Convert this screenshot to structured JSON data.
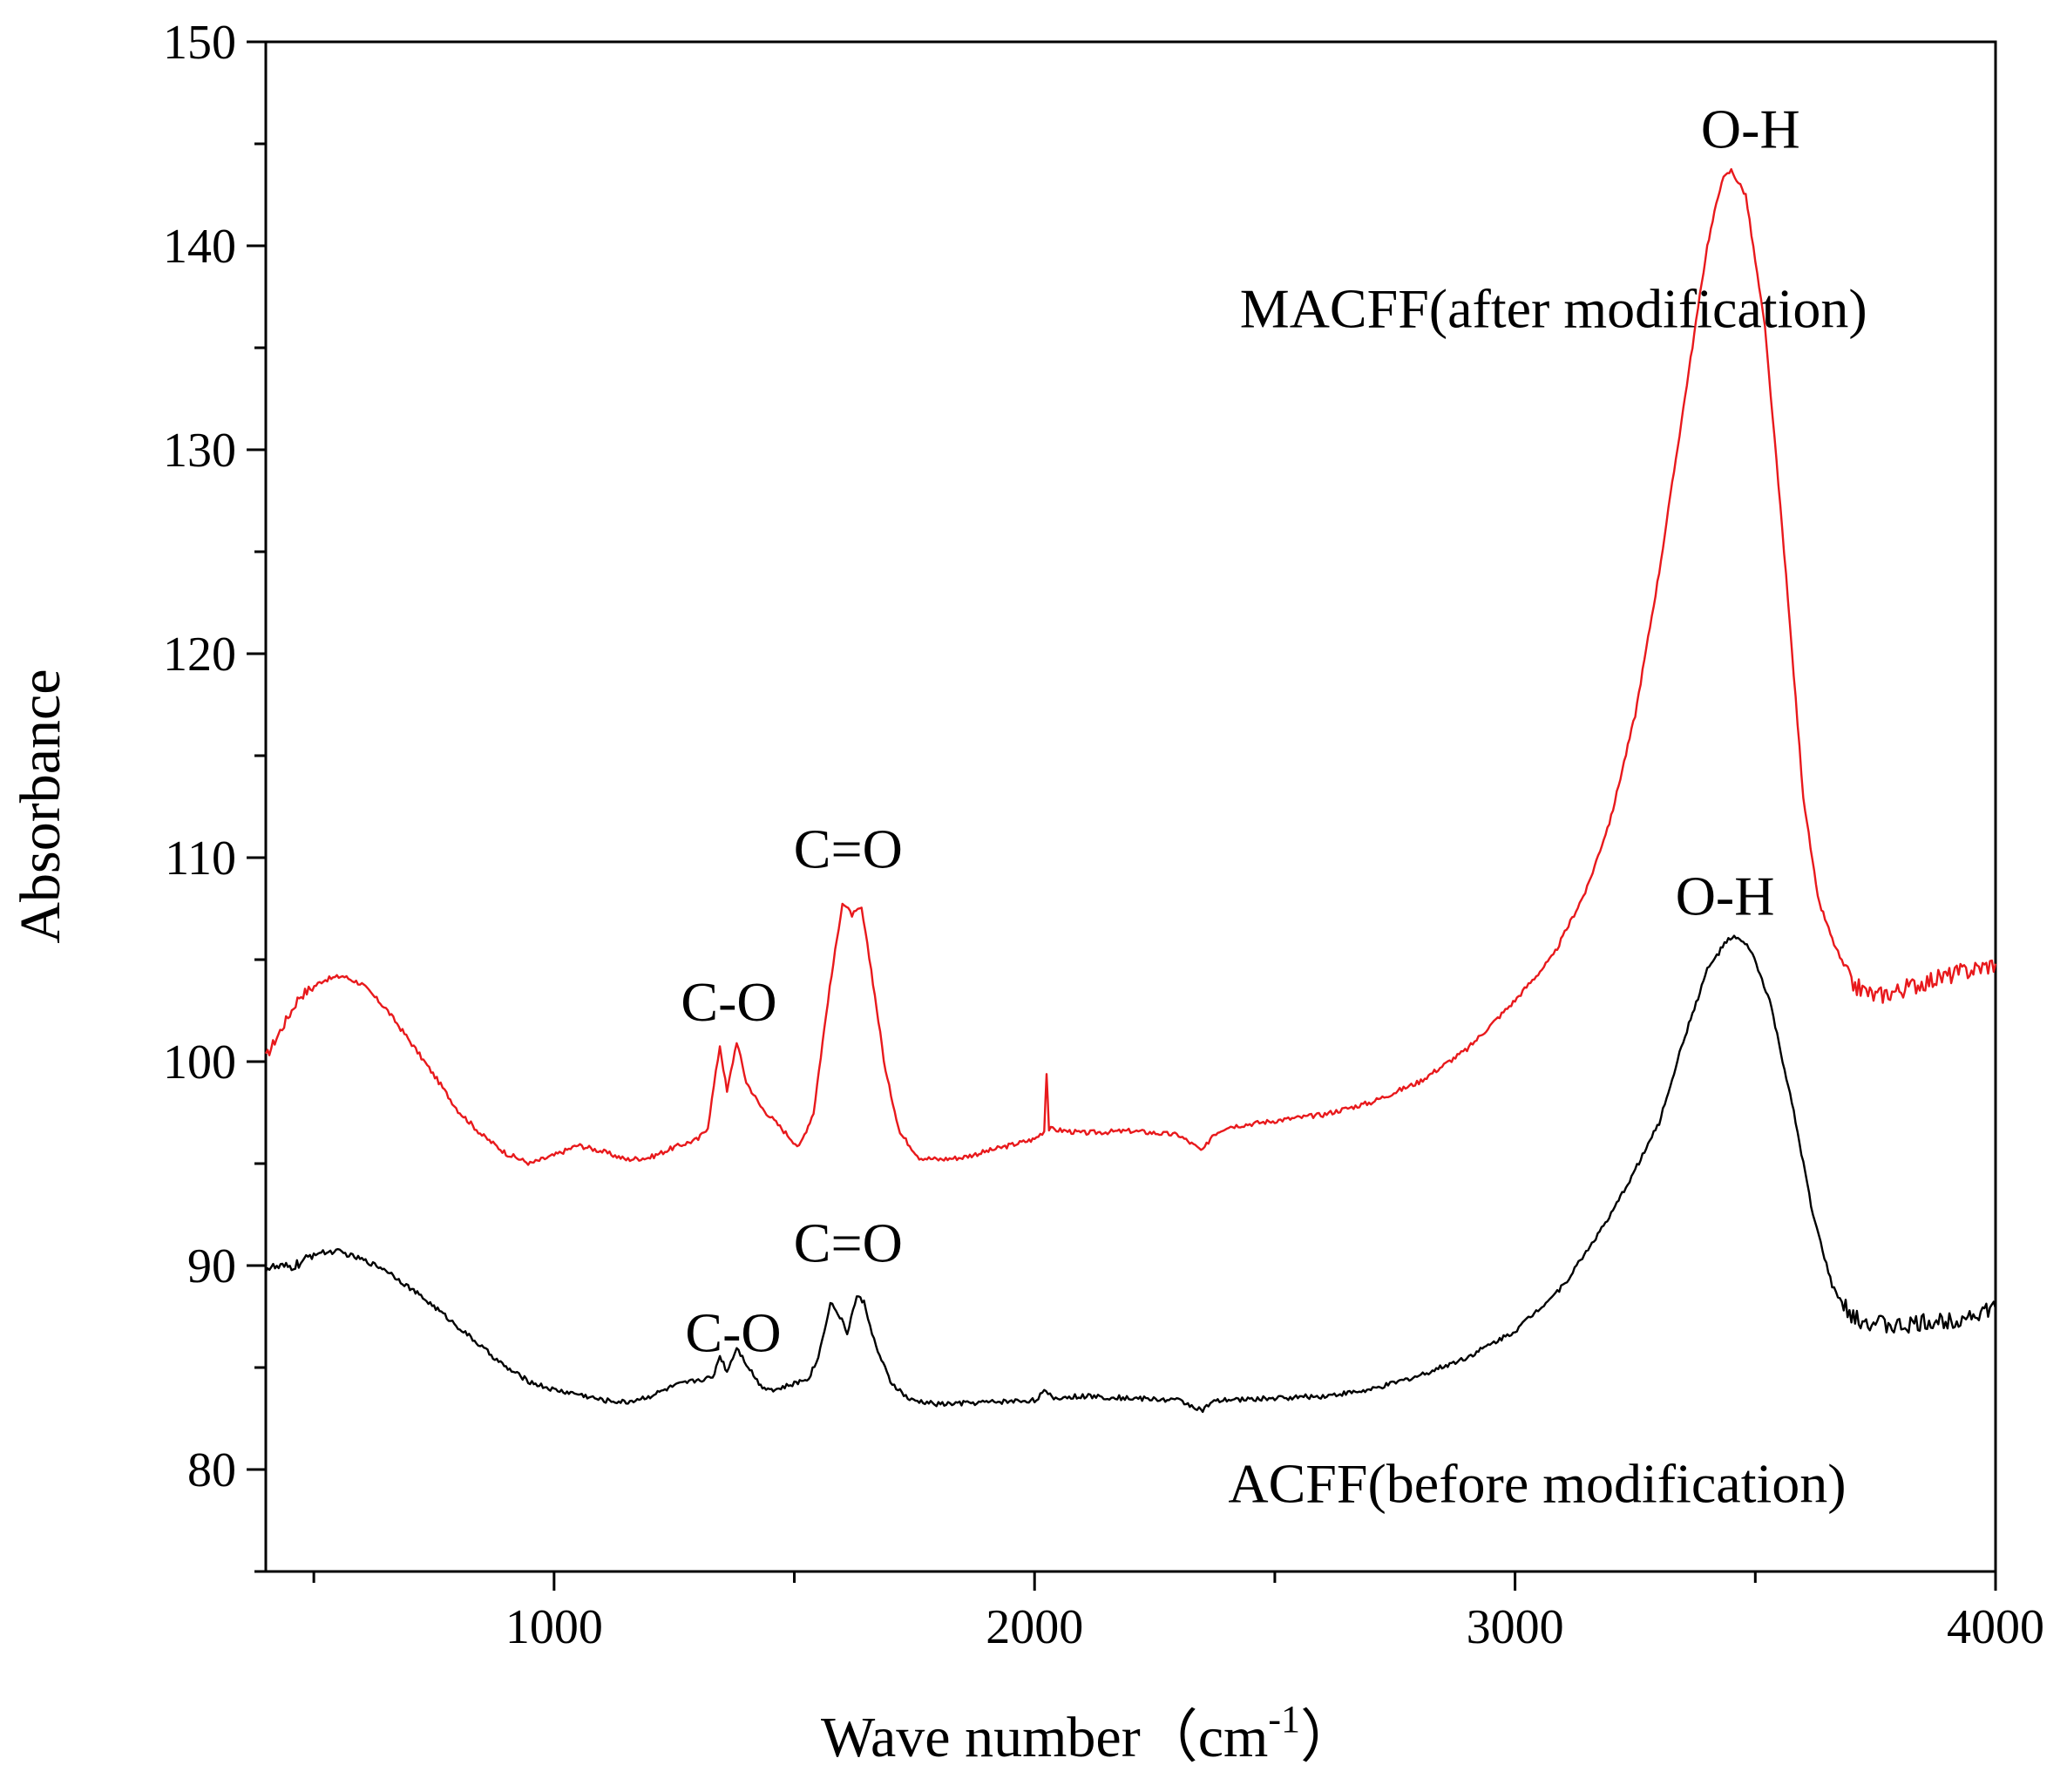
{
  "chart_data": {
    "type": "line",
    "title": "",
    "xlabel": "Wave number",
    "xlabel_unit_base": "（cm",
    "xlabel_unit_exp": "-1",
    "xlabel_unit_close": "）",
    "ylabel": "Absorbance",
    "xlim": [
      400,
      4000
    ],
    "ylim": [
      75,
      150
    ],
    "x_ticks": [
      1000,
      2000,
      3000,
      4000
    ],
    "x_minor_ticks": [
      500,
      1500,
      2500,
      3500
    ],
    "y_ticks": [
      80,
      90,
      100,
      110,
      120,
      130,
      140,
      150
    ],
    "x_tick_labels": [
      "1000",
      "2000",
      "3000",
      "4000"
    ],
    "y_tick_labels": [
      "80",
      "90",
      "100",
      "110",
      "120",
      "130",
      "140",
      "150"
    ],
    "series": [
      {
        "name": "MACFF(after modification)",
        "color": "#e8191c",
        "points": [
          [
            400,
            100.2
          ],
          [
            430,
            101.5
          ],
          [
            470,
            103.2
          ],
          [
            520,
            104.0
          ],
          [
            560,
            104.2
          ],
          [
            600,
            103.8
          ],
          [
            650,
            102.6
          ],
          [
            700,
            101.0
          ],
          [
            760,
            99.0
          ],
          [
            800,
            97.6
          ],
          [
            850,
            96.4
          ],
          [
            900,
            95.5
          ],
          [
            950,
            95.0
          ],
          [
            1000,
            95.4
          ],
          [
            1050,
            95.9
          ],
          [
            1100,
            95.6
          ],
          [
            1150,
            95.2
          ],
          [
            1200,
            95.3
          ],
          [
            1250,
            95.8
          ],
          [
            1300,
            96.2
          ],
          [
            1320,
            96.8
          ],
          [
            1345,
            100.8
          ],
          [
            1360,
            98.5
          ],
          [
            1380,
            101.0
          ],
          [
            1400,
            99.0
          ],
          [
            1430,
            97.8
          ],
          [
            1470,
            96.8
          ],
          [
            1510,
            95.8
          ],
          [
            1540,
            97.5
          ],
          [
            1570,
            103.0
          ],
          [
            1600,
            107.8
          ],
          [
            1620,
            107.2
          ],
          [
            1640,
            107.5
          ],
          [
            1660,
            104.5
          ],
          [
            1690,
            99.5
          ],
          [
            1720,
            96.5
          ],
          [
            1760,
            95.3
          ],
          [
            1800,
            95.2
          ],
          [
            1850,
            95.3
          ],
          [
            1900,
            95.6
          ],
          [
            1950,
            95.9
          ],
          [
            2000,
            96.2
          ],
          [
            2020,
            96.6
          ],
          [
            2025,
            99.5
          ],
          [
            2030,
            96.7
          ],
          [
            2100,
            96.5
          ],
          [
            2200,
            96.6
          ],
          [
            2300,
            96.4
          ],
          [
            2350,
            95.6
          ],
          [
            2370,
            96.4
          ],
          [
            2400,
            96.8
          ],
          [
            2500,
            97.1
          ],
          [
            2600,
            97.4
          ],
          [
            2700,
            98.0
          ],
          [
            2800,
            99.0
          ],
          [
            2900,
            100.6
          ],
          [
            3000,
            103.0
          ],
          [
            3080,
            105.2
          ],
          [
            3150,
            108.5
          ],
          [
            3200,
            112.0
          ],
          [
            3250,
            117.0
          ],
          [
            3300,
            124.0
          ],
          [
            3350,
            132.0
          ],
          [
            3400,
            140.0
          ],
          [
            3430,
            143.2
          ],
          [
            3450,
            143.7
          ],
          [
            3480,
            142.5
          ],
          [
            3520,
            136.0
          ],
          [
            3560,
            125.0
          ],
          [
            3600,
            113.0
          ],
          [
            3630,
            108.0
          ],
          [
            3660,
            106.0
          ],
          [
            3700,
            103.8
          ],
          [
            3750,
            103.2
          ],
          [
            3800,
            103.5
          ],
          [
            3850,
            103.9
          ],
          [
            3900,
            104.2
          ],
          [
            3950,
            104.5
          ],
          [
            4000,
            104.8
          ]
        ]
      },
      {
        "name": "ACFF(before modification)",
        "color": "#000000",
        "points": [
          [
            400,
            89.9
          ],
          [
            450,
            89.9
          ],
          [
            480,
            90.2
          ],
          [
            500,
            90.6
          ],
          [
            550,
            90.7
          ],
          [
            600,
            90.3
          ],
          [
            650,
            89.8
          ],
          [
            700,
            88.9
          ],
          [
            750,
            88.0
          ],
          [
            800,
            87.0
          ],
          [
            850,
            86.0
          ],
          [
            900,
            85.0
          ],
          [
            950,
            84.3
          ],
          [
            1000,
            83.9
          ],
          [
            1050,
            83.7
          ],
          [
            1100,
            83.4
          ],
          [
            1150,
            83.3
          ],
          [
            1200,
            83.6
          ],
          [
            1250,
            84.1
          ],
          [
            1300,
            84.4
          ],
          [
            1330,
            84.5
          ],
          [
            1345,
            85.6
          ],
          [
            1360,
            84.8
          ],
          [
            1380,
            86.0
          ],
          [
            1400,
            85.2
          ],
          [
            1430,
            84.1
          ],
          [
            1460,
            83.9
          ],
          [
            1500,
            84.2
          ],
          [
            1530,
            84.5
          ],
          [
            1550,
            85.5
          ],
          [
            1575,
            88.2
          ],
          [
            1595,
            87.5
          ],
          [
            1610,
            86.7
          ],
          [
            1630,
            88.5
          ],
          [
            1645,
            88.2
          ],
          [
            1670,
            86.0
          ],
          [
            1700,
            84.3
          ],
          [
            1740,
            83.4
          ],
          [
            1800,
            83.2
          ],
          [
            1900,
            83.3
          ],
          [
            2000,
            83.4
          ],
          [
            2020,
            83.8
          ],
          [
            2040,
            83.5
          ],
          [
            2100,
            83.6
          ],
          [
            2200,
            83.5
          ],
          [
            2300,
            83.4
          ],
          [
            2350,
            82.9
          ],
          [
            2370,
            83.3
          ],
          [
            2400,
            83.4
          ],
          [
            2500,
            83.5
          ],
          [
            2600,
            83.6
          ],
          [
            2700,
            83.9
          ],
          [
            2800,
            84.6
          ],
          [
            2900,
            85.5
          ],
          [
            3000,
            86.8
          ],
          [
            3100,
            89.0
          ],
          [
            3200,
            92.5
          ],
          [
            3250,
            94.7
          ],
          [
            3300,
            97.0
          ],
          [
            3350,
            101.0
          ],
          [
            3400,
            104.5
          ],
          [
            3440,
            105.9
          ],
          [
            3460,
            106.1
          ],
          [
            3490,
            105.5
          ],
          [
            3530,
            103.0
          ],
          [
            3580,
            97.5
          ],
          [
            3620,
            92.5
          ],
          [
            3660,
            89.0
          ],
          [
            3700,
            87.4
          ],
          [
            3750,
            87.2
          ],
          [
            3800,
            87.0
          ],
          [
            3850,
            87.2
          ],
          [
            3900,
            87.3
          ],
          [
            3950,
            87.6
          ],
          [
            4000,
            87.9
          ]
        ]
      }
    ],
    "annotations": [
      {
        "text": "O-H",
        "x": 3490,
        "y": 144.8,
        "anchor": "middle"
      },
      {
        "text": "MACFF(after modification)",
        "x": 3080,
        "y": 136.0,
        "anchor": "middle"
      },
      {
        "text": "C=O",
        "x": 1612,
        "y": 109.5,
        "anchor": "middle"
      },
      {
        "text": "C-O",
        "x": 1364,
        "y": 102.0,
        "anchor": "middle"
      },
      {
        "text": "O-H",
        "x": 3437,
        "y": 107.2,
        "anchor": "middle"
      },
      {
        "text": "C=O",
        "x": 1612,
        "y": 90.2,
        "anchor": "middle"
      },
      {
        "text": "C-O",
        "x": 1373,
        "y": 85.8,
        "anchor": "middle"
      },
      {
        "text": "ACFF(before modification)",
        "x": 3046,
        "y": 78.4,
        "anchor": "middle"
      }
    ]
  }
}
